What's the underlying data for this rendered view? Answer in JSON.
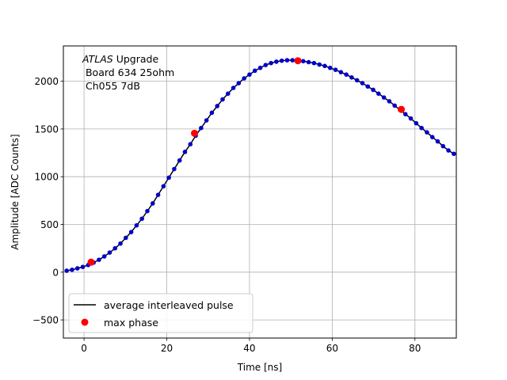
{
  "chart_data": {
    "type": "scatter",
    "title": "",
    "xlabel": "Time [ns]",
    "ylabel": "Amplitude [ADC Counts]",
    "xlim": [
      -5,
      90
    ],
    "ylim": [
      -690,
      2370
    ],
    "xticks": [
      0,
      20,
      40,
      60,
      80
    ],
    "yticks": [
      -500,
      0,
      500,
      1000,
      1500,
      2000
    ],
    "grid": true,
    "legend_position": "lower-left",
    "annotation": {
      "lines": [
        {
          "italic": "ATLAS",
          "rest": " Upgrade"
        },
        {
          "italic": "",
          "rest": " Board 634 25ohm"
        },
        {
          "italic": "",
          "rest": " Ch055 7dB"
        }
      ]
    },
    "series": [
      {
        "name": "average interleaved pulse",
        "kind": "line-with-markers",
        "line_color": "#000000",
        "marker_color": "#0000cc",
        "x": [
          -4.2,
          -2.9,
          -1.6,
          -0.3,
          1.0,
          2.3,
          3.6,
          4.9,
          6.2,
          7.5,
          8.8,
          10.1,
          11.4,
          12.7,
          14.0,
          15.3,
          16.6,
          17.9,
          19.2,
          20.5,
          21.8,
          23.1,
          24.4,
          25.7,
          27.0,
          28.3,
          29.6,
          30.9,
          32.2,
          33.5,
          34.8,
          36.1,
          37.4,
          38.7,
          40.0,
          41.3,
          42.6,
          43.9,
          45.2,
          46.5,
          47.8,
          49.1,
          50.4,
          51.7,
          53.0,
          54.3,
          55.6,
          56.9,
          58.2,
          59.5,
          60.8,
          62.1,
          63.4,
          64.7,
          66.0,
          67.3,
          68.6,
          69.9,
          71.2,
          72.5,
          73.8,
          75.1,
          76.4,
          77.7,
          79.0,
          80.3,
          81.6,
          82.9,
          84.2,
          85.5,
          86.8,
          88.1,
          89.4
        ],
        "y": [
          15,
          25,
          40,
          55,
          75,
          100,
          130,
          165,
          205,
          250,
          300,
          360,
          420,
          490,
          560,
          640,
          720,
          810,
          900,
          990,
          1080,
          1170,
          1260,
          1340,
          1430,
          1510,
          1590,
          1670,
          1740,
          1810,
          1870,
          1930,
          1980,
          2030,
          2070,
          2110,
          2140,
          2170,
          2190,
          2205,
          2215,
          2220,
          2220,
          2215,
          2210,
          2200,
          2190,
          2175,
          2160,
          2140,
          2120,
          2095,
          2070,
          2040,
          2010,
          1980,
          1945,
          1910,
          1870,
          1830,
          1790,
          1745,
          1700,
          1655,
          1610,
          1560,
          1510,
          1465,
          1415,
          1370,
          1320,
          1275,
          1240
        ]
      },
      {
        "name": "max phase",
        "kind": "markers",
        "marker_color": "#ff0000",
        "x": [
          1.7,
          26.7,
          51.7,
          76.7
        ],
        "y": [
          105,
          1455,
          2215,
          1705
        ]
      }
    ]
  }
}
